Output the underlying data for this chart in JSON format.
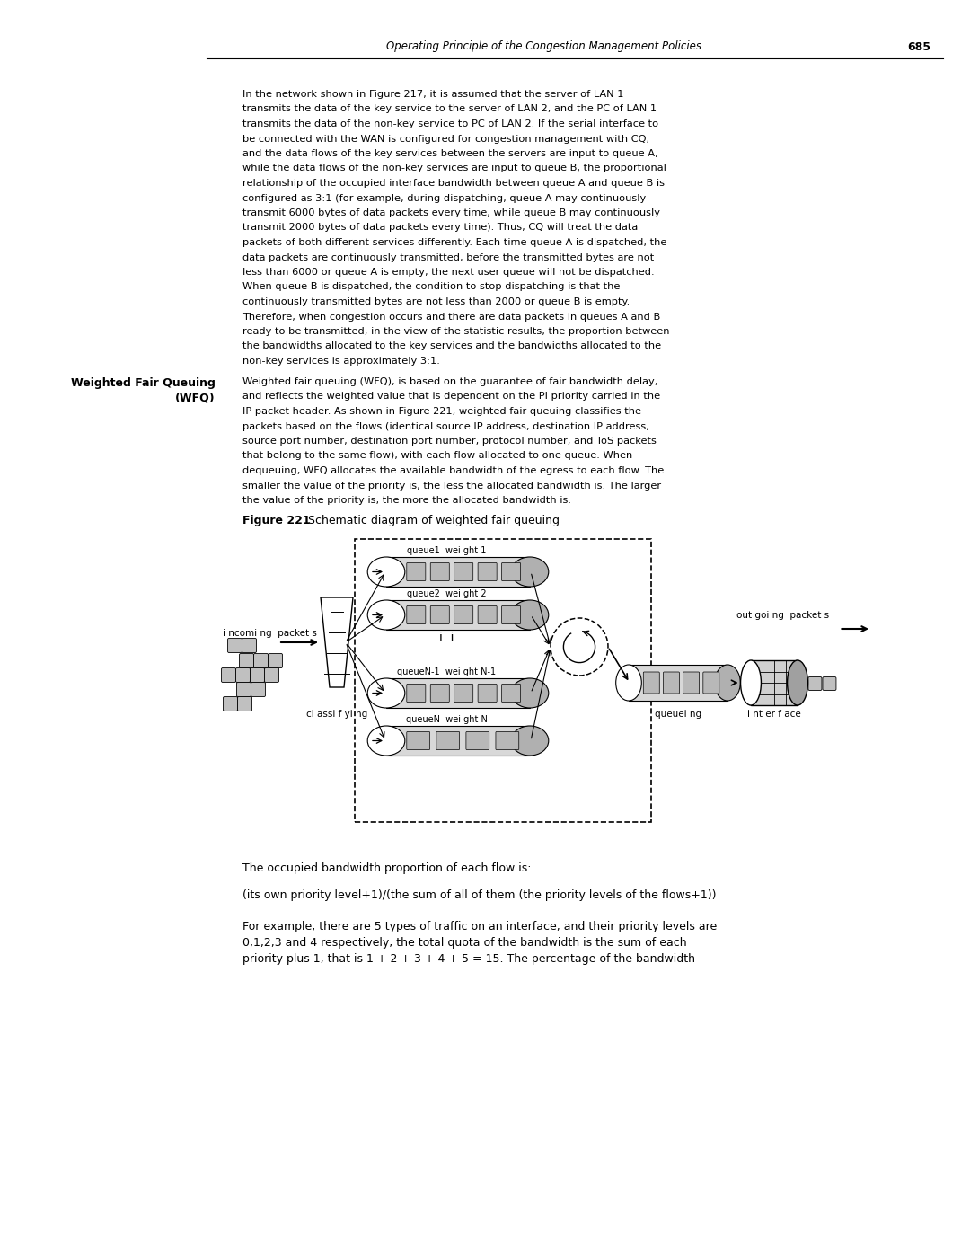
{
  "page_header_italic": "Operating Principle of the Congestion Management Policies",
  "page_number": "685",
  "body_text_1": [
    "In the network shown in Figure 217, it is assumed that the server of LAN 1",
    "transmits the data of the key service to the server of LAN 2, and the PC of LAN 1",
    "transmits the data of the non-key service to PC of LAN 2. If the serial interface to",
    "be connected with the WAN is configured for congestion management with CQ,",
    "and the data flows of the key services between the servers are input to queue A,",
    "while the data flows of the non-key services are input to queue B, the proportional",
    "relationship of the occupied interface bandwidth between queue A and queue B is",
    "configured as 3:1 (for example, during dispatching, queue A may continuously",
    "transmit 6000 bytes of data packets every time, while queue B may continuously",
    "transmit 2000 bytes of data packets every time). Thus, CQ will treat the data",
    "packets of both different services differently. Each time queue A is dispatched, the",
    "data packets are continuously transmitted, before the transmitted bytes are not",
    "less than 6000 or queue A is empty, the next user queue will not be dispatched.",
    "When queue B is dispatched, the condition to stop dispatching is that the",
    "continuously transmitted bytes are not less than 2000 or queue B is empty.",
    "Therefore, when congestion occurs and there are data packets in queues A and B",
    "ready to be transmitted, in the view of the statistic results, the proportion between",
    "the bandwidths allocated to the key services and the bandwidths allocated to the",
    "non-key services is approximately 3:1."
  ],
  "section_title_line1": "Weighted Fair Queuing",
  "section_title_line2": "(WFQ)",
  "section_body": [
    "Weighted fair queuing (WFQ), is based on the guarantee of fair bandwidth delay,",
    "and reflects the weighted value that is dependent on the PI priority carried in the",
    "IP packet header. As shown in Figure 221, weighted fair queuing classifies the",
    "packets based on the flows (identical source IP address, destination IP address,",
    "source port number, destination port number, protocol number, and ToS packets",
    "that belong to the same flow), with each flow allocated to one queue. When",
    "dequeuing, WFQ allocates the available bandwidth of the egress to each flow. The",
    "smaller the value of the priority is, the less the allocated bandwidth is. The larger",
    "the value of the priority is, the more the allocated bandwidth is."
  ],
  "figure_caption_bold": "Figure 221",
  "figure_caption_rest": "   Schematic diagram of weighted fair queuing",
  "bottom_text_1": "The occupied bandwidth proportion of each flow is:",
  "bottom_text_2": "(its own priority level+1)/(the sum of all of them (the priority levels of the flows+1))",
  "bottom_text_3": [
    "For example, there are 5 types of traffic on an interface, and their priority levels are",
    "0,1,2,3 and 4 respectively, the total quota of the bandwidth is the sum of each",
    "priority plus 1, that is 1 + 2 + 3 + 4 + 5 = 15. The percentage of the bandwidth"
  ],
  "label_incoming": "i ncomi ng  packet s",
  "label_classifying": "cl assi f yi ng",
  "label_outgoing": "out goi ng  packet s",
  "label_interface": "i nt er f ace",
  "label_queueing": "queuei ng",
  "label_q1": "queue1  wei ght 1",
  "label_q2": "queue2  wei ght 2",
  "label_qn1": "queueN-1  wei ght N-1",
  "label_qn": "queueN  wei ght N",
  "label_dots": "i  i",
  "bg_color": "#ffffff",
  "text_color": "#000000",
  "queue_fill": "#d8d8d8",
  "packet_fill": "#b8b8b8",
  "small_packet_fill": "#c0c0c0"
}
